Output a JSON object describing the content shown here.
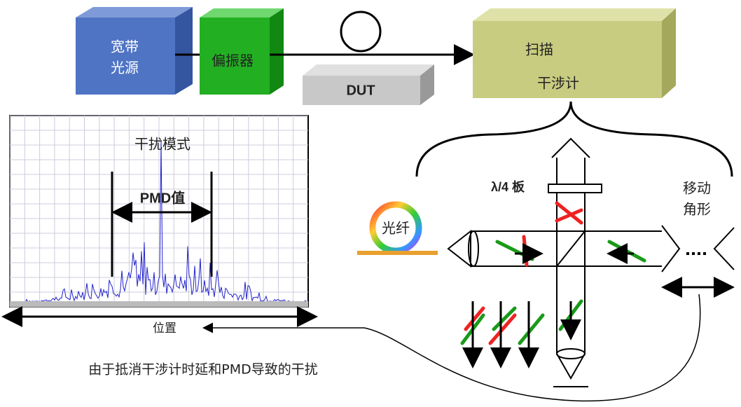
{
  "blocks": {
    "source": [
      "宽带",
      "光源"
    ],
    "polarizer": "偏振器",
    "dut": "DUT",
    "interferometer": [
      "扫描",
      "干涉计"
    ]
  },
  "plot": {
    "title": "干扰模式",
    "pmd": "PMD值",
    "xlabel": "位置"
  },
  "optics": {
    "waveplate": "λ/4 板",
    "corner": [
      "移动",
      "角形"
    ],
    "fiber": "光纤"
  },
  "caption": "由于抵消干涉计时延和PMD导致的干扰"
}
